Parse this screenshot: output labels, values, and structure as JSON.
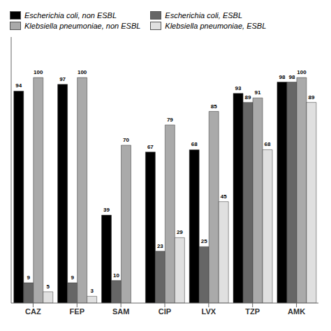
{
  "chart_data": {
    "type": "bar",
    "categories": [
      "CAZ",
      "FEP",
      "SAM",
      "CIP",
      "LVX",
      "TZP",
      "AMK"
    ],
    "series": [
      {
        "name": "Escherichia coli, non ESBL",
        "color": "#000000",
        "values": [
          94,
          97,
          39,
          67,
          68,
          93,
          98
        ]
      },
      {
        "name": "Escherichia coli, ESBL",
        "color": "#666666",
        "values": [
          9,
          9,
          10,
          23,
          25,
          89,
          98
        ]
      },
      {
        "name": "Klebsiella pneumoniae, non ESBL",
        "color": "#aaaaaa",
        "values": [
          100,
          100,
          70,
          79,
          85,
          91,
          100
        ]
      },
      {
        "name": "Klebsiella pneumoniae, ESBL",
        "color": "#e0e0e0",
        "values": [
          5,
          3,
          0,
          29,
          45,
          68,
          89
        ]
      }
    ],
    "ylim": [
      0,
      118
    ],
    "data_labels": true,
    "tick_labels": "x",
    "grid": false,
    "legend": "upper left"
  }
}
